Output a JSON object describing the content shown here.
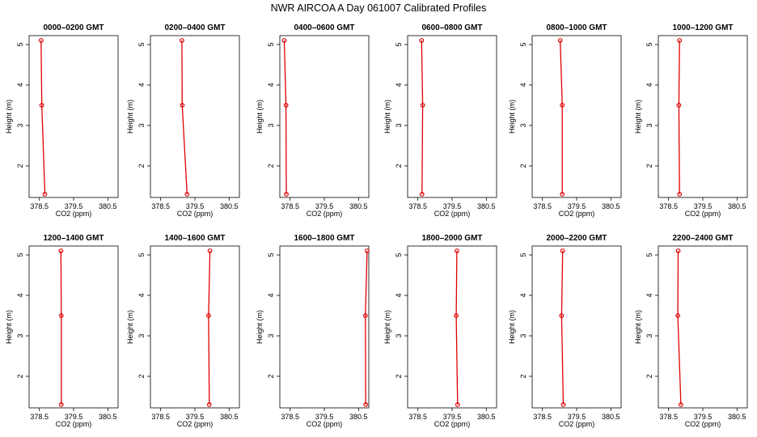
{
  "title": "NWR AIRCOA A  Day 061007  Calibrated Profiles",
  "chart_data": {
    "type": "line",
    "xlabel": "CO2 (ppm)",
    "ylabel": "Height (m)",
    "xlim": [
      378.2,
      380.8
    ],
    "ylim": [
      1.22,
      5.22
    ],
    "x_ticks": [
      378.5,
      379.5,
      380.5
    ],
    "x_tick_labels": [
      "378.5",
      "379.5",
      "380.5"
    ],
    "y_ticks": [
      2,
      3,
      4,
      5
    ],
    "y_tick_labels": [
      "2",
      "3",
      "4",
      "5"
    ],
    "color": "#dd0000",
    "panels": [
      {
        "title": "0000–0200 GMT",
        "points": [
          {
            "x": 378.66,
            "y": 1.3
          },
          {
            "x": 378.57,
            "y": 3.5
          },
          {
            "x": 378.55,
            "y": 5.1
          }
        ]
      },
      {
        "title": "0200–0400 GMT",
        "points": [
          {
            "x": 379.27,
            "y": 1.3
          },
          {
            "x": 379.13,
            "y": 3.5
          },
          {
            "x": 379.12,
            "y": 5.1
          }
        ]
      },
      {
        "title": "0400–0600 GMT",
        "points": [
          {
            "x": 378.39,
            "y": 1.3
          },
          {
            "x": 378.38,
            "y": 3.5
          },
          {
            "x": 378.33,
            "y": 5.1
          }
        ]
      },
      {
        "title": "0600–0800 GMT",
        "points": [
          {
            "x": 378.62,
            "y": 1.3
          },
          {
            "x": 378.64,
            "y": 3.5
          },
          {
            "x": 378.61,
            "y": 5.1
          }
        ]
      },
      {
        "title": "0800–1000 GMT",
        "points": [
          {
            "x": 379.08,
            "y": 1.3
          },
          {
            "x": 379.08,
            "y": 3.5
          },
          {
            "x": 379.02,
            "y": 5.1
          }
        ]
      },
      {
        "title": "1000–1200 GMT",
        "points": [
          {
            "x": 378.82,
            "y": 1.3
          },
          {
            "x": 378.8,
            "y": 3.5
          },
          {
            "x": 378.82,
            "y": 5.1
          }
        ]
      },
      {
        "title": "1200–1400 GMT",
        "points": [
          {
            "x": 379.14,
            "y": 1.3
          },
          {
            "x": 379.14,
            "y": 3.5
          },
          {
            "x": 379.13,
            "y": 5.1
          }
        ]
      },
      {
        "title": "1400–1600 GMT",
        "points": [
          {
            "x": 379.92,
            "y": 1.3
          },
          {
            "x": 379.9,
            "y": 3.5
          },
          {
            "x": 379.94,
            "y": 5.1
          }
        ]
      },
      {
        "title": "1600–1800 GMT",
        "points": [
          {
            "x": 380.71,
            "y": 1.3
          },
          {
            "x": 380.7,
            "y": 3.5
          },
          {
            "x": 380.75,
            "y": 5.1
          }
        ]
      },
      {
        "title": "1800–2000 GMT",
        "points": [
          {
            "x": 379.66,
            "y": 1.3
          },
          {
            "x": 379.62,
            "y": 3.5
          },
          {
            "x": 379.64,
            "y": 5.1
          }
        ]
      },
      {
        "title": "2000–2200 GMT",
        "points": [
          {
            "x": 379.11,
            "y": 1.3
          },
          {
            "x": 379.06,
            "y": 3.5
          },
          {
            "x": 379.09,
            "y": 5.1
          }
        ]
      },
      {
        "title": "2200–2400 GMT",
        "points": [
          {
            "x": 378.86,
            "y": 1.3
          },
          {
            "x": 378.77,
            "y": 3.5
          },
          {
            "x": 378.78,
            "y": 5.1
          }
        ]
      }
    ]
  }
}
